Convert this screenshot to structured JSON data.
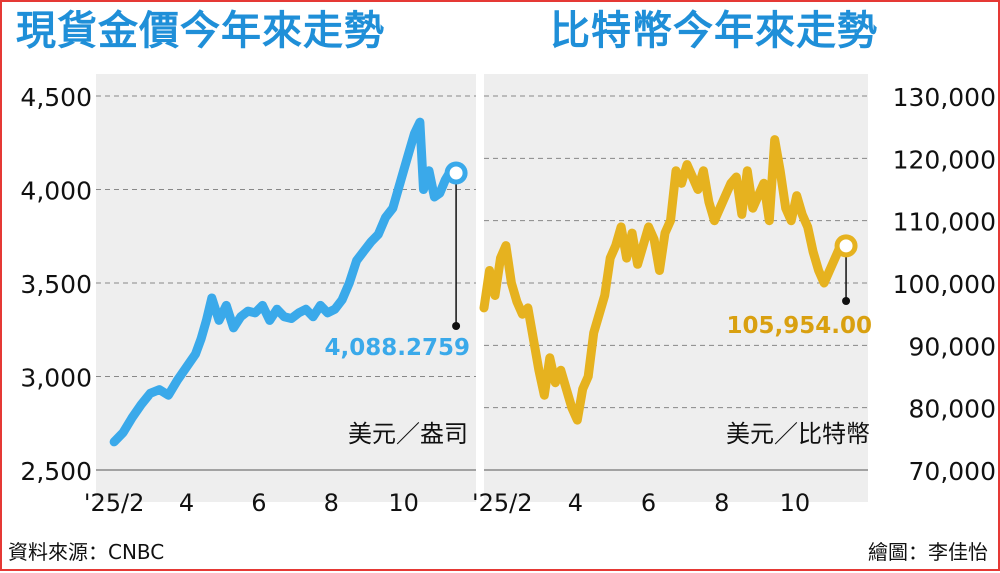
{
  "titles": {
    "left": "現貨金價今年來走勢",
    "right": "比特幣今年來走勢"
  },
  "footer": {
    "source": "資料來源：CNBC",
    "credit": "繪圖：李佳怡"
  },
  "colors": {
    "title": "#1f8fd8",
    "gold_line": "#3aa9ea",
    "btc_line": "#e6b21f",
    "gold_label": "#3aa9ea",
    "btc_label": "#d9a010",
    "grid": "#888888",
    "panel": "#eeeeee"
  },
  "chart_data": [
    {
      "type": "line",
      "unit_label": "美元／盎司",
      "ylim": [
        2500,
        4500
      ],
      "yticks": [
        2500,
        3000,
        3500,
        4000,
        4500
      ],
      "ytick_labels": [
        "2,500",
        "3,000",
        "3,500",
        "4,000",
        "4,500"
      ],
      "y_axis_side": "left",
      "xlim": [
        1.5,
        12
      ],
      "xticks": [
        2,
        4,
        6,
        8,
        10
      ],
      "xtick_labels": [
        "'25/2",
        "4",
        "6",
        "8",
        "10"
      ],
      "grid": "dashed-horizontal",
      "end_label": "4,088.2759",
      "end_value": 4088.2759,
      "series": [
        {
          "x": [
            2.0,
            2.25,
            2.5,
            2.75,
            3.0,
            3.25,
            3.5,
            3.75,
            4.0,
            4.25,
            4.4,
            4.55,
            4.7,
            4.9,
            5.1,
            5.3,
            5.5,
            5.7,
            5.9,
            6.1,
            6.3,
            6.5,
            6.7,
            6.9,
            7.1,
            7.3,
            7.5,
            7.7,
            7.9,
            8.1,
            8.3,
            8.5,
            8.7,
            8.9,
            9.1,
            9.3,
            9.5,
            9.7,
            9.85,
            10.0,
            10.15,
            10.3,
            10.45,
            10.55,
            10.7,
            10.85,
            11.0,
            11.15,
            11.3,
            11.45
          ],
          "y": [
            2650,
            2700,
            2780,
            2850,
            2910,
            2930,
            2900,
            2980,
            3050,
            3120,
            3200,
            3300,
            3420,
            3300,
            3380,
            3260,
            3320,
            3350,
            3340,
            3380,
            3300,
            3360,
            3320,
            3310,
            3340,
            3360,
            3320,
            3380,
            3340,
            3360,
            3410,
            3500,
            3620,
            3670,
            3720,
            3760,
            3850,
            3900,
            4000,
            4100,
            4200,
            4300,
            4360,
            4000,
            4100,
            3960,
            3980,
            4050,
            4100,
            4088.2759
          ]
        }
      ]
    },
    {
      "type": "line",
      "unit_label": "美元／比特幣",
      "ylim": [
        70000,
        130000
      ],
      "yticks": [
        70000,
        80000,
        90000,
        100000,
        110000,
        120000,
        130000
      ],
      "ytick_labels": [
        "70,000",
        "80,000",
        "90,000",
        "100,000",
        "110,000",
        "120,000",
        "130,000"
      ],
      "y_axis_side": "right",
      "xlim": [
        1.5,
        12
      ],
      "xticks": [
        2,
        4,
        6,
        8,
        10
      ],
      "xtick_labels": [
        "'25/2",
        "4",
        "6",
        "8",
        "10"
      ],
      "grid": "dashed-horizontal",
      "end_label": "105,954.00",
      "end_value": 105954,
      "series": [
        {
          "x": [
            1.5,
            1.65,
            1.8,
            1.95,
            2.1,
            2.25,
            2.4,
            2.55,
            2.7,
            2.85,
            3.0,
            3.15,
            3.3,
            3.45,
            3.6,
            3.75,
            3.9,
            4.05,
            4.2,
            4.35,
            4.5,
            4.65,
            4.8,
            4.95,
            5.1,
            5.25,
            5.4,
            5.55,
            5.7,
            5.85,
            6.0,
            6.15,
            6.3,
            6.45,
            6.6,
            6.75,
            6.9,
            7.05,
            7.2,
            7.35,
            7.5,
            7.65,
            7.8,
            7.95,
            8.1,
            8.25,
            8.4,
            8.55,
            8.7,
            8.85,
            9.0,
            9.15,
            9.3,
            9.45,
            9.6,
            9.75,
            9.9,
            10.05,
            10.2,
            10.35,
            10.5,
            10.65,
            10.8,
            10.95,
            11.1,
            11.25,
            11.4
          ],
          "y": [
            96000,
            102000,
            98000,
            104000,
            106000,
            100000,
            97000,
            95000,
            96000,
            91000,
            86000,
            82000,
            88000,
            84000,
            86000,
            83000,
            80000,
            78000,
            83000,
            85000,
            92000,
            95000,
            98000,
            104000,
            106000,
            109000,
            104000,
            108000,
            103000,
            106000,
            109000,
            107000,
            102000,
            108000,
            110000,
            118000,
            116000,
            119000,
            117000,
            115000,
            118000,
            113000,
            110000,
            112000,
            114000,
            116000,
            117000,
            111000,
            118000,
            112000,
            114000,
            116000,
            110000,
            123000,
            118000,
            112000,
            110000,
            114000,
            111000,
            109000,
            105000,
            102000,
            100000,
            102000,
            104000,
            106000,
            105954
          ]
        }
      ]
    }
  ]
}
